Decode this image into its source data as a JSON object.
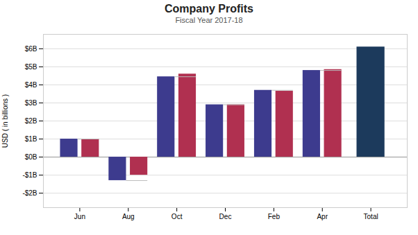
{
  "chart_data": {
    "type": "bar",
    "title": "Company Profits",
    "subtitle": "Fiscal Year 2017-18",
    "ylabel": "USD ( in billions )",
    "categories": [
      "Jun",
      "Aug",
      "Oct",
      "Dec",
      "Feb",
      "Apr",
      "Total"
    ],
    "series": [
      {
        "colors": [
          "#3D3B8E",
          "#3D3B8E",
          "#3D3B8E",
          "#3D3B8E",
          "#3D3B8E",
          "#3D3B8E",
          "#1C3A5C"
        ],
        "values": [
          1.0,
          -1.3,
          4.45,
          2.9,
          3.7,
          4.8,
          6.1
        ]
      },
      {
        "color": "#B03050",
        "values": [
          1.0,
          -1.0,
          4.6,
          2.9,
          3.65,
          4.85,
          null
        ]
      },
      {
        "type": "connector",
        "color": "#BBBBBB",
        "line_style": "dashed",
        "values": [
          1.0,
          -1.3,
          4.45,
          2.9,
          3.7,
          4.8,
          null
        ]
      }
    ],
    "ylim": [
      -2.8,
      6.8
    ],
    "yticks": [
      {
        "value": -2,
        "label": "-$2B"
      },
      {
        "value": -1,
        "label": "-$1B"
      },
      {
        "value": 0,
        "label": "$0B"
      },
      {
        "value": 1,
        "label": "$1B"
      },
      {
        "value": 2,
        "label": "$2B"
      },
      {
        "value": 3,
        "label": "$3B"
      },
      {
        "value": 4,
        "label": "$4B"
      },
      {
        "value": 5,
        "label": "$5B"
      },
      {
        "value": 6,
        "label": "$6B"
      }
    ],
    "grid": true
  }
}
